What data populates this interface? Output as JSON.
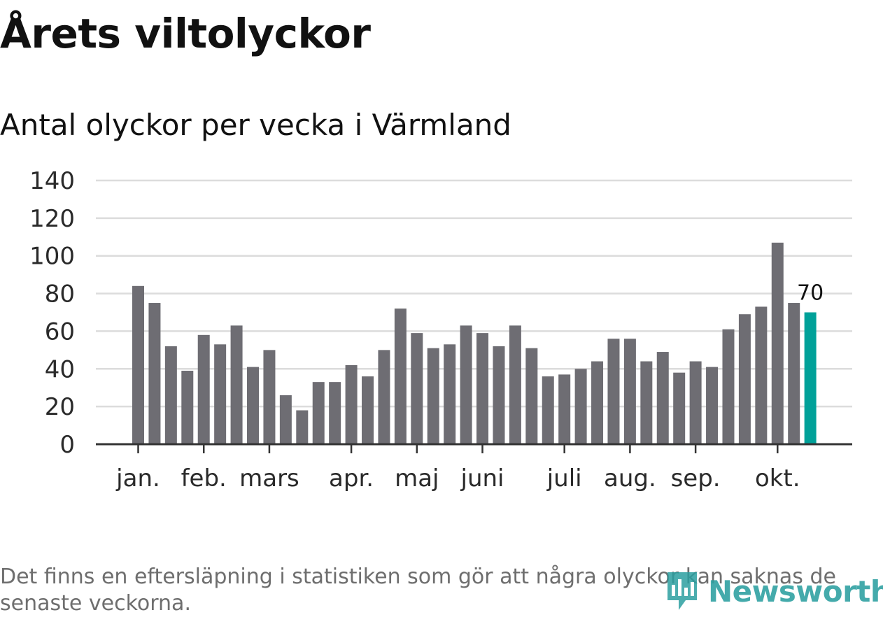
{
  "title": "Årets viltolyckor",
  "subtitle": "Antal olyckor per vecka i Värmland",
  "footnote": "Det finns en eftersläpning i statistiken som gör att några olyckor kan saknas de senaste veckorna.",
  "brand": {
    "name": "Newsworthy",
    "icon": "newsworthy-logo-icon"
  },
  "colors": {
    "bar": "#6e6d73",
    "highlight": "#00a199",
    "grid": "#dcdcdc",
    "axis": "#333333",
    "brand": "#2b9fa0"
  },
  "chart_data": {
    "type": "bar",
    "title": "Antal olyckor per vecka i Värmland",
    "xlabel": "",
    "ylabel": "",
    "ylim": [
      0,
      140
    ],
    "yticks": [
      0,
      20,
      40,
      60,
      80,
      100,
      120,
      140
    ],
    "grid": true,
    "x_axis_months": [
      {
        "label": "jan.",
        "week_index": 0
      },
      {
        "label": "feb.",
        "week_index": 4
      },
      {
        "label": "mars",
        "week_index": 8
      },
      {
        "label": "apr.",
        "week_index": 13
      },
      {
        "label": "maj",
        "week_index": 17
      },
      {
        "label": "juni",
        "week_index": 21
      },
      {
        "label": "juli",
        "week_index": 26
      },
      {
        "label": "aug.",
        "week_index": 30
      },
      {
        "label": "sep.",
        "week_index": 34
      },
      {
        "label": "okt.",
        "week_index": 39
      }
    ],
    "values": [
      84,
      75,
      52,
      39,
      58,
      53,
      63,
      41,
      50,
      26,
      18,
      33,
      33,
      42,
      36,
      50,
      72,
      59,
      51,
      53,
      63,
      59,
      52,
      63,
      51,
      36,
      37,
      40,
      44,
      56,
      56,
      44,
      49,
      38,
      44,
      41,
      61,
      69,
      73,
      107,
      75,
      70
    ],
    "highlight_index": 41,
    "data_labels": [
      {
        "index": 41,
        "text": "70"
      }
    ]
  }
}
